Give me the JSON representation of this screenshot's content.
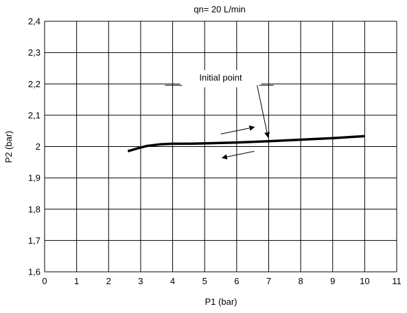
{
  "chart_data": {
    "type": "line",
    "title": "qn= 20 L/min",
    "xlabel": "P1 (bar)",
    "ylabel": "P2 (bar)",
    "xlim": [
      0,
      11
    ],
    "ylim": [
      1.6,
      2.4
    ],
    "x_ticks": [
      "0",
      "1",
      "2",
      "3",
      "4",
      "5",
      "6",
      "7",
      "8",
      "9",
      "10",
      "11"
    ],
    "y_ticks": [
      "1,6",
      "1,7",
      "1,8",
      "1,9",
      "2",
      "2,1",
      "2,2",
      "2,3",
      "2,4"
    ],
    "grid": true,
    "series": [
      {
        "x": [
          2.6,
          2.9,
          3.2,
          3.6,
          4.0,
          4.5,
          5.0,
          6.0,
          7.0,
          8.0,
          9.0,
          10.0
        ],
        "y": [
          1.985,
          1.994,
          2.002,
          2.007,
          2.009,
          2.009,
          2.01,
          2.013,
          2.017,
          2.022,
          2.027,
          2.033
        ]
      }
    ],
    "annotations": [
      {
        "text": "Initial point",
        "x": 5.5,
        "y": 2.2,
        "arrow_to": [
          7.0,
          2.017
        ]
      }
    ],
    "direction_arrows": [
      {
        "from": [
          5.5,
          2.04
        ],
        "to": [
          6.55,
          2.062
        ]
      },
      {
        "from": [
          6.55,
          1.985
        ],
        "to": [
          5.55,
          1.964
        ]
      }
    ]
  }
}
